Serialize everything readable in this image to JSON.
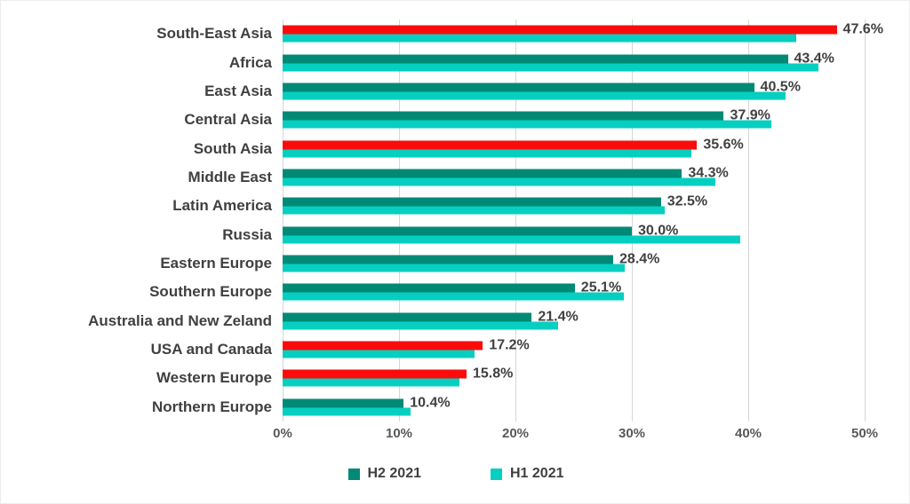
{
  "chart_data": {
    "type": "bar",
    "orientation": "horizontal",
    "title": "",
    "categories": [
      "South-East Asia",
      "Africa",
      "East Asia",
      "Central Asia",
      "South Asia",
      "Middle East",
      "Latin America",
      "Russia",
      "Eastern Europe",
      "Southern Europe",
      "Australia and New Zeland",
      "USA and Canada",
      "Western Europe",
      "Northern Europe"
    ],
    "series": [
      {
        "name": "H2 2021",
        "color": "#008a76",
        "values": [
          47.6,
          43.4,
          40.5,
          37.9,
          35.6,
          34.3,
          32.5,
          30.0,
          28.4,
          25.1,
          21.4,
          17.2,
          15.8,
          10.4
        ]
      },
      {
        "name": "H1 2021",
        "color": "#06cfc1",
        "values": [
          44.1,
          46.0,
          43.2,
          42.0,
          35.1,
          37.2,
          32.8,
          39.3,
          29.4,
          29.3,
          23.7,
          16.5,
          15.2,
          11.0
        ]
      }
    ],
    "data_labels": [
      "47.6%",
      "43.4%",
      "40.5%",
      "37.9%",
      "35.6%",
      "34.3%",
      "32.5%",
      "30.0%",
      "28.4%",
      "25.1%",
      "21.4%",
      "17.2%",
      "15.8%",
      "10.4%"
    ],
    "highlight": {
      "series": "H2 2021",
      "color": "#fb0c0c",
      "categories": [
        "South-East Asia",
        "South Asia",
        "USA and Canada",
        "Western Europe"
      ]
    },
    "x_ticks": [
      "0%",
      "10%",
      "20%",
      "30%",
      "40%",
      "50%"
    ],
    "xlim": [
      0,
      50
    ],
    "gridlines": true,
    "gridline_color": "#d6d6d6",
    "text_color": "#404040",
    "legend": {
      "position": "bottom",
      "items": [
        "H2 2021",
        "H1 2021"
      ]
    }
  }
}
